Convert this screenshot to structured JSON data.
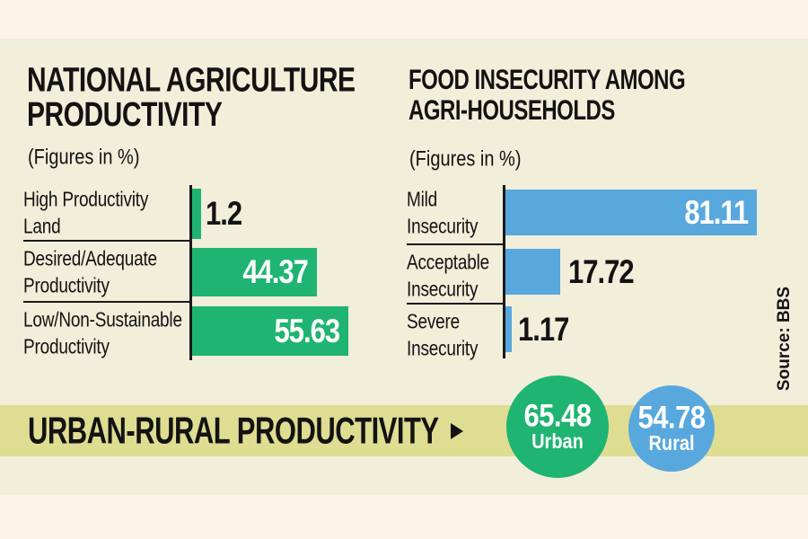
{
  "page": {
    "source": "Source: BBS"
  },
  "colors": {
    "background_top_bottom": "#fdf3e8",
    "background_main": "#f1eeda",
    "band": "#dedd92",
    "green": "#1fb471",
    "blue": "#58a8de",
    "text": "#131313"
  },
  "left_chart": {
    "title_line1": "NATIONAL AGRICULTURE",
    "title_line2": "PRODUCTIVITY",
    "subtitle": "(Figures in %)",
    "rows": [
      {
        "label": "High Productivity\nLand",
        "value": 1.2,
        "value_text": "1.2"
      },
      {
        "label": "Desired/Adequate\nProductivity",
        "value": 44.37,
        "value_text": "44.37"
      },
      {
        "label": "Low/Non-Sustainable\nProductivity",
        "value": 55.63,
        "value_text": "55.63"
      }
    ]
  },
  "right_chart": {
    "title_line1": "FOOD INSECURITY AMONG",
    "title_line2": "AGRI-HOUSEHOLDS",
    "subtitle": "(Figures in %)",
    "rows": [
      {
        "label": "Mild\nInsecurity",
        "value": 81.11,
        "value_text": "81.11"
      },
      {
        "label": "Acceptable\nInsecurity",
        "value": 17.72,
        "value_text": "17.72"
      },
      {
        "label": "Severe\nInsecurity",
        "value": 1.17,
        "value_text": "1.17"
      }
    ]
  },
  "bottom_band": {
    "title": "URBAN-RURAL PRODUCTIVITY",
    "circles": [
      {
        "value": 65.48,
        "value_text": "65.48",
        "label": "Urban",
        "color": "#1fb471"
      },
      {
        "value": 54.78,
        "value_text": "54.78",
        "label": "Rural",
        "color": "#58a8de"
      }
    ]
  },
  "chart_data": [
    {
      "type": "bar",
      "orientation": "horizontal",
      "title": "NATIONAL AGRICULTURE PRODUCTIVITY",
      "subtitle": "(Figures in %)",
      "categories": [
        "High Productivity Land",
        "Desired/Adequate Productivity",
        "Low/Non-Sustainable Productivity"
      ],
      "values": [
        1.2,
        44.37,
        55.63
      ],
      "value_labels": [
        "1.2",
        "44.37",
        "55.63"
      ],
      "value_label_position": [
        "outside",
        "inside",
        "inside"
      ],
      "bar_color": "#1fb471",
      "xlim": [
        0,
        60
      ],
      "grid": false,
      "legend": false
    },
    {
      "type": "bar",
      "orientation": "horizontal",
      "title": "FOOD INSECURITY AMONG AGRI-HOUSEHOLDS",
      "subtitle": "(Figures in %)",
      "categories": [
        "Mild Insecurity",
        "Acceptable Insecurity",
        "Severe Insecurity"
      ],
      "values": [
        81.11,
        17.72,
        1.17
      ],
      "value_labels": [
        "81.11",
        "17.72",
        "1.17"
      ],
      "value_label_position": [
        "inside",
        "outside",
        "outside"
      ],
      "bar_color": "#58a8de",
      "xlim": [
        0,
        85
      ],
      "grid": false,
      "legend": false
    },
    {
      "type": "bar",
      "title": "URBAN-RURAL PRODUCTIVITY",
      "categories": [
        "Urban",
        "Rural"
      ],
      "values": [
        65.48,
        54.78
      ],
      "colors": [
        "#1fb471",
        "#58a8de"
      ],
      "note": "shown as circle badges"
    }
  ]
}
